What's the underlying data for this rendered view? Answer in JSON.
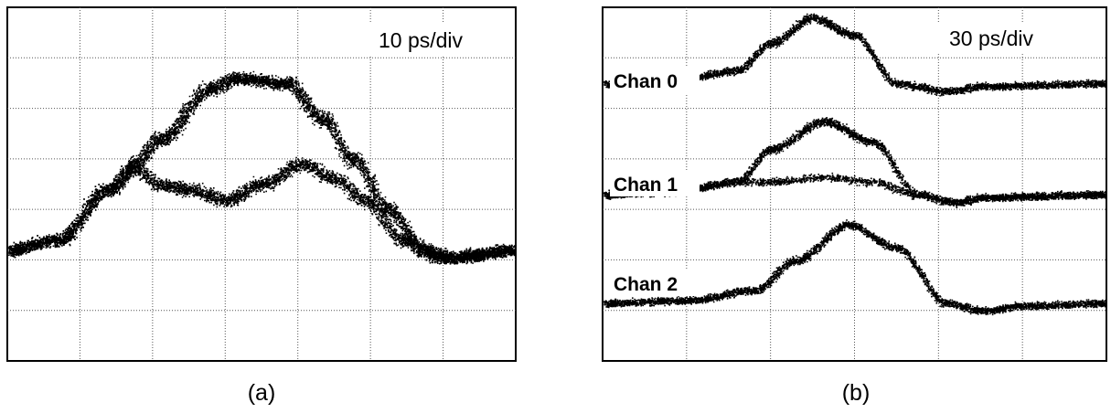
{
  "chart_data": [
    {
      "type": "scatter",
      "panel_label": "(a)",
      "annotation": "10 ps/div",
      "x_unit": "ps",
      "xlim": [
        0,
        100
      ],
      "ylim": [
        0,
        7
      ],
      "grid": true,
      "divisions": {
        "x": 7,
        "y": 7
      },
      "point_color": "#000000",
      "traces": [
        {
          "x": [
            0,
            10,
            20,
            25,
            30,
            40,
            45,
            55,
            62,
            68,
            75,
            82,
            88,
            100
          ],
          "y": [
            2.2,
            2.4,
            3.4,
            3.9,
            4.4,
            5.4,
            5.6,
            5.5,
            4.8,
            4.0,
            3.0,
            2.2,
            2.05,
            2.2
          ]
        },
        {
          "x": [
            0,
            10,
            20,
            25,
            30,
            36,
            43,
            50,
            58,
            65,
            70,
            78,
            85,
            100
          ],
          "y": [
            2.2,
            2.4,
            3.4,
            3.8,
            3.5,
            3.4,
            3.2,
            3.5,
            3.9,
            3.6,
            3.2,
            2.4,
            2.05,
            2.2
          ]
        }
      ]
    },
    {
      "type": "scatter",
      "panel_label": "(b)",
      "annotation": "30 ps/div",
      "x_unit": "ps",
      "xlim": [
        0,
        300
      ],
      "ylim": [
        0,
        7
      ],
      "grid": true,
      "divisions": {
        "x": 6,
        "y": 7
      },
      "point_color": "#000000",
      "channels": [
        {
          "name": "Chan 0",
          "traces": [
            {
              "x": [
                0,
                40,
                80,
                100,
                125,
                150,
                175,
                205,
                230,
                300
              ],
              "y": [
                5.5,
                5.55,
                5.75,
                6.3,
                6.8,
                6.45,
                5.5,
                5.35,
                5.45,
                5.5
              ]
            }
          ]
        },
        {
          "name": "Chan 1",
          "traces": [
            {
              "x": [
                0,
                40,
                80,
                100,
                132,
                160,
                188,
                210,
                230,
                300
              ],
              "y": [
                3.3,
                3.35,
                3.55,
                4.2,
                4.75,
                4.35,
                3.3,
                3.15,
                3.25,
                3.3
              ]
            },
            {
              "x": [
                0,
                40,
                80,
                100,
                132,
                160,
                188,
                210,
                230,
                300
              ],
              "y": [
                3.3,
                3.35,
                3.55,
                3.55,
                3.65,
                3.55,
                3.3,
                3.15,
                3.25,
                3.3
              ]
            }
          ]
        },
        {
          "name": "Chan 2",
          "traces": [
            {
              "x": [
                0,
                50,
                90,
                115,
                146,
                175,
                205,
                225,
                250,
                300
              ],
              "y": [
                1.15,
                1.2,
                1.4,
                2.0,
                2.7,
                2.25,
                1.15,
                1.0,
                1.1,
                1.15
              ]
            }
          ]
        }
      ]
    }
  ]
}
